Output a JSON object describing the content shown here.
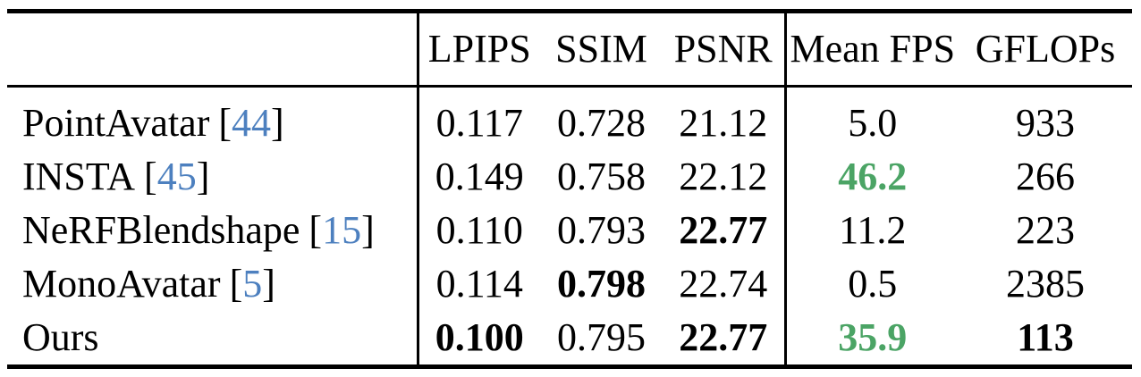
{
  "table": {
    "headers": {
      "method": "",
      "lpips": "LPIPS",
      "ssim": "SSIM",
      "psnr": "PSNR",
      "mean_fps": "Mean FPS",
      "gflops": "GFLOPs"
    },
    "punct": {
      "open_bracket": "[",
      "close_bracket": "]"
    },
    "rows": [
      {
        "method": "PointAvatar",
        "cite": "44",
        "lpips": "0.117",
        "ssim": "0.728",
        "psnr": "21.12",
        "mean_fps": "5.0",
        "gflops": "933"
      },
      {
        "method": "INSTA",
        "cite": "45",
        "lpips": "0.149",
        "ssim": "0.758",
        "psnr": "22.12",
        "mean_fps": "46.2",
        "gflops": "266"
      },
      {
        "method": "NeRFBlendshape",
        "cite": "15",
        "lpips": "0.110",
        "ssim": "0.793",
        "psnr": "22.77",
        "mean_fps": "11.2",
        "gflops": "223"
      },
      {
        "method": "MonoAvatar",
        "cite": "5",
        "lpips": "0.114",
        "ssim": "0.798",
        "psnr": "22.74",
        "mean_fps": "0.5",
        "gflops": "2385"
      },
      {
        "method": "Ours",
        "cite": "",
        "lpips": "0.100",
        "ssim": "0.795",
        "psnr": "22.77",
        "mean_fps": "35.9",
        "gflops": "113"
      }
    ]
  },
  "colors": {
    "citation_blue": "#4d80bf",
    "best_green": "#4ba465",
    "text": "#000000",
    "background": "#ffffff"
  }
}
